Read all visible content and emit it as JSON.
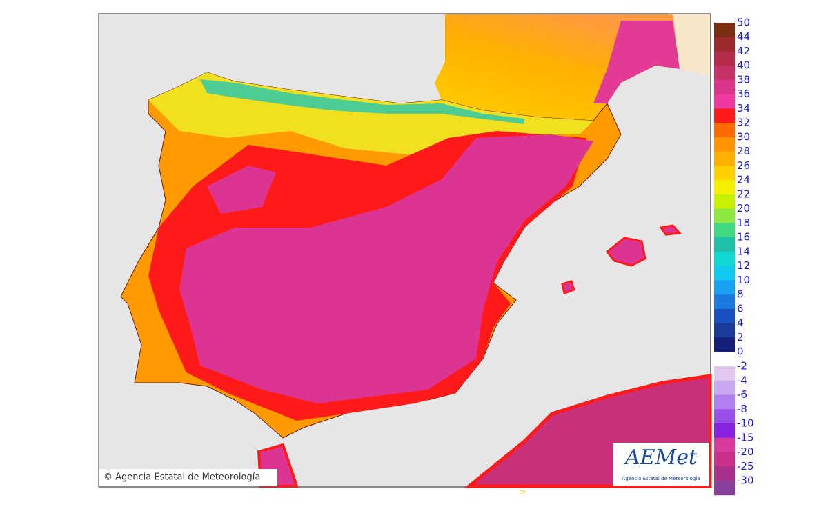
{
  "legend": {
    "positive": {
      "labels": [
        50,
        44,
        42,
        40,
        38,
        36,
        34,
        32,
        30,
        28,
        26,
        24,
        22,
        20,
        18,
        16,
        14,
        12,
        10,
        8,
        6,
        4,
        2,
        0
      ],
      "colors": [
        "#7a2e12",
        "#9c2a2a",
        "#b42c4a",
        "#c8306a",
        "#dc3488",
        "#ee3a9e",
        "#ff1a1a",
        "#ff6a00",
        "#ff9400",
        "#ffb000",
        "#ffd000",
        "#f5f000",
        "#c8f000",
        "#8ce840",
        "#40d880",
        "#20c0a8",
        "#10d8d0",
        "#10c8f0",
        "#1aa0f0",
        "#1a7ae0",
        "#1a50c0",
        "#1a3a9c",
        "#16207a"
      ]
    },
    "negative": {
      "labels": [
        -2,
        -4,
        -6,
        -8,
        -10,
        -15,
        -20,
        -25,
        -30
      ],
      "colors": [
        "#e0c8f0",
        "#c8a8f0",
        "#b080f0",
        "#9a50e8",
        "#8a20e0",
        "#d83aa0",
        "#c8308a",
        "#a8308a",
        "#884098"
      ]
    }
  },
  "copyright": "© Agencia Estatal de Meteorología",
  "logo": {
    "name": "AEMet",
    "subtitle": "Agencia Estatal de Meteorología"
  },
  "meridian_label": "0º"
}
